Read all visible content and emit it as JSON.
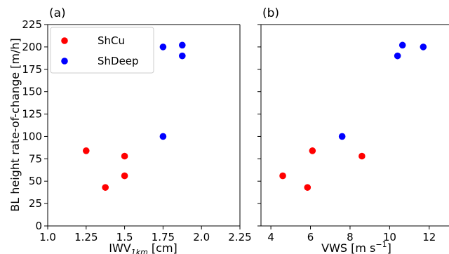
{
  "chart_data": [
    {
      "type": "scatter",
      "panel_label": "(a)",
      "xlabel_main": "IWV",
      "xlabel_sub": "1km",
      "xlabel_unit": " [cm]",
      "ylabel": "BL height rate-of-change [m/h]",
      "xlim": [
        1.0,
        2.25
      ],
      "ylim": [
        0,
        225
      ],
      "xticks": [
        1.0,
        1.25,
        1.5,
        1.75,
        2.0,
        2.25
      ],
      "xtick_labels": [
        "1.0",
        "1.25",
        "1.5",
        "1.75",
        "2.0",
        "2.25"
      ],
      "yticks": [
        0,
        25,
        50,
        75,
        100,
        125,
        150,
        175,
        200,
        225
      ],
      "ytick_labels": [
        "0",
        "25",
        "50",
        "75",
        "100",
        "125",
        "150",
        "175",
        "200",
        "225"
      ],
      "legend": "top-left",
      "grid": false,
      "series": [
        {
          "name": "ShCu",
          "color": "#ff0000",
          "points": [
            [
              1.25,
              84
            ],
            [
              1.375,
              43
            ],
            [
              1.5,
              78
            ],
            [
              1.5,
              56
            ]
          ]
        },
        {
          "name": "ShDeep",
          "color": "#0000ff",
          "points": [
            [
              1.75,
              200
            ],
            [
              1.875,
              202
            ],
            [
              1.875,
              190
            ],
            [
              1.75,
              100
            ]
          ]
        }
      ]
    },
    {
      "type": "scatter",
      "panel_label": "(b)",
      "xlabel_main": "VWS [m s",
      "xlabel_sup": "−1",
      "xlabel_unit": "]",
      "ylabel": "",
      "xlim": [
        3.5,
        13.0
      ],
      "ylim": [
        0,
        225
      ],
      "xticks": [
        4,
        6,
        8,
        10,
        12
      ],
      "xtick_labels": [
        "4",
        "6",
        "8",
        "10",
        "12"
      ],
      "legend": "none",
      "grid": false,
      "series": [
        {
          "name": "ShCu",
          "color": "#ff0000",
          "points": [
            [
              4.6,
              56
            ],
            [
              5.85,
              43
            ],
            [
              6.1,
              84
            ],
            [
              8.6,
              78
            ]
          ]
        },
        {
          "name": "ShDeep",
          "color": "#0000ff",
          "points": [
            [
              7.6,
              100
            ],
            [
              10.4,
              190
            ],
            [
              10.65,
              202
            ],
            [
              11.7,
              200
            ]
          ]
        }
      ]
    }
  ]
}
